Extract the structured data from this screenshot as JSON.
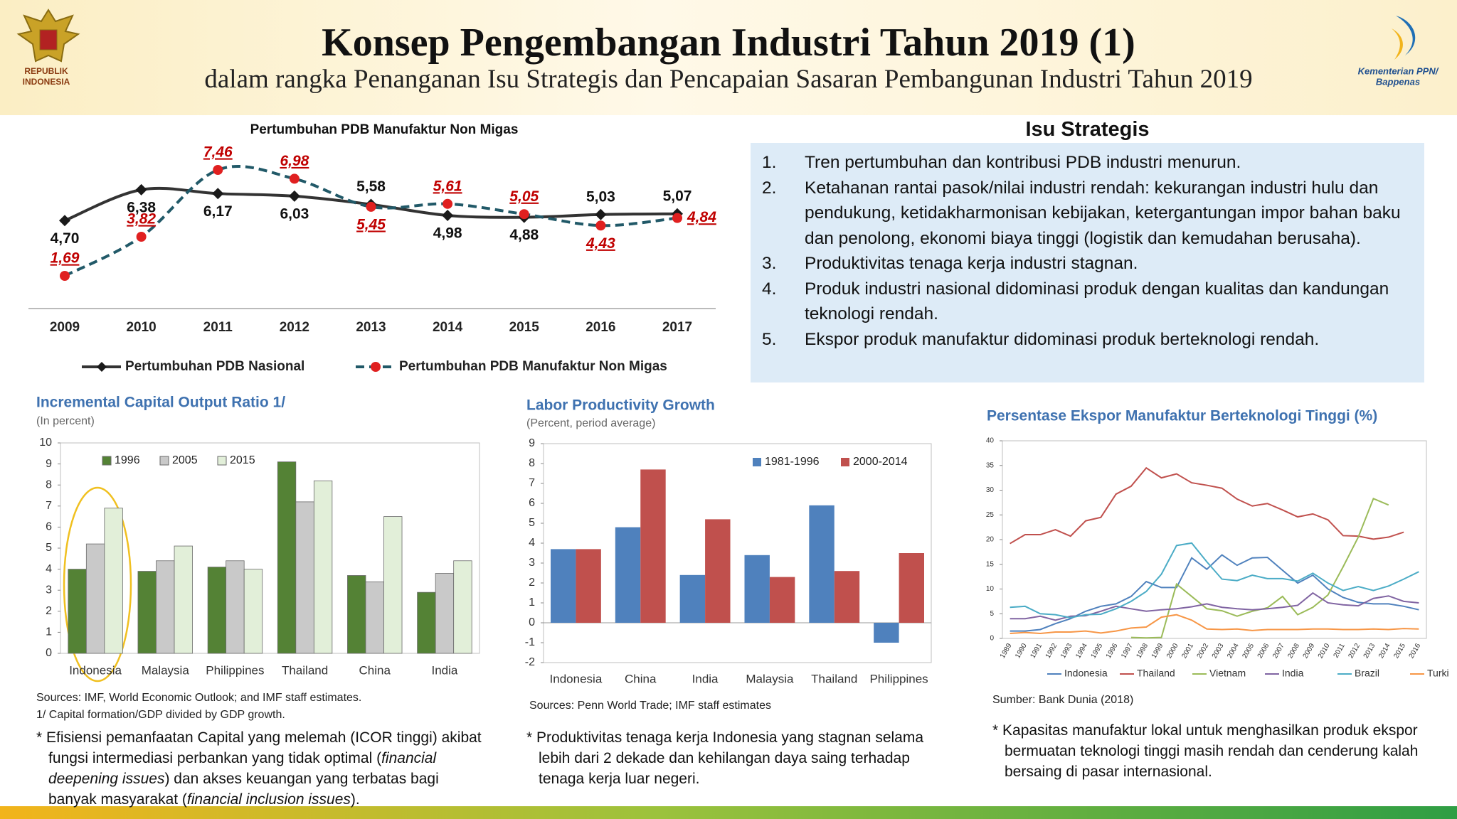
{
  "header": {
    "title": "Konsep Pengembangan Industri Tahun 2019 (1)",
    "subtitle": "dalam rangka Penanganan Isu Strategis dan Pencapaian Sasaran Pembangunan Industri Tahun 2019",
    "left_logo": [
      "REPUBLIK",
      "INDONESIA"
    ],
    "right_logo": [
      "Kementerian PPN/",
      "Bappenas"
    ]
  },
  "isu": {
    "heading": "Isu Strategis",
    "items": [
      {
        "number": "1.",
        "text": "Tren pertumbuhan dan kontribusi PDB industri menurun."
      },
      {
        "number": "2.",
        "text": "Ketahanan rantai pasok/nilai industri rendah: kekurangan industri hulu dan pendukung, ketidakharmonisan kebijakan, ketergantungan impor bahan baku dan penolong, ekonomi biaya tinggi (logistik dan kemudahan berusaha)."
      },
      {
        "number": "3.",
        "text": "Produktivitas tenaga kerja industri stagnan."
      },
      {
        "number": "4.",
        "text": "Produk industri nasional didominasi produk dengan kualitas dan kandungan teknologi rendah."
      },
      {
        "number": "5.",
        "text": "Ekspor produk manufaktur didominasi produk berteknologi rendah."
      }
    ]
  },
  "notes": [
    [
      "* Efisiensi pemanfaatan Capital yang melemah (ICOR tinggi) akibat fungsi intermediasi perbankan yang tidak optimal (",
      "financial deepening issues",
      ") dan akses keuangan yang terbatas bagi banyak masyarakat (",
      "financial inclusion issues",
      ")."
    ],
    "* Produktivitas tenaga kerja Indonesia yang stagnan selama lebih dari 2 dekade dan kehilangan daya saing terhadap tenaga kerja luar negeri.",
    "* Kapasitas manufaktur lokal untuk menghasilkan produk ekspor bermuatan teknologi tinggi masih rendah dan cenderung kalah bersaing di pasar internasional."
  ],
  "chart_data": [
    {
      "type": "line",
      "title": "Pertumbuhan PDB Manufaktur Non Migas",
      "smooth": true,
      "categories": [
        "2009",
        "2010",
        "2011",
        "2012",
        "2013",
        "2014",
        "2015",
        "2016",
        "2017"
      ],
      "series": [
        {
          "name": "Pertumbuhan PDB Nasional",
          "color": "#333333",
          "marker": "diamond",
          "marker_color": "#1a1a1a",
          "values": [
            4.7,
            6.38,
            6.17,
            6.03,
            5.58,
            4.98,
            4.88,
            5.03,
            5.07
          ],
          "value_labels": [
            "4,70",
            "6,38",
            "6,17",
            "6,03",
            "5,58",
            "4,98",
            "4,88",
            "5,03",
            "5,07"
          ]
        },
        {
          "name": "Pertumbuhan PDB Manufaktur Non Migas",
          "color": "#215968",
          "dashed": true,
          "marker": "circle",
          "marker_color": "#e02020",
          "label_color": "#c00000",
          "values": [
            1.69,
            3.82,
            7.46,
            6.98,
            5.45,
            5.61,
            5.05,
            4.43,
            4.84
          ],
          "value_labels": [
            "1,69",
            "3,82",
            "7,46",
            "6,98",
            "5,45",
            "5,61",
            "5,05",
            "4,43",
            "4,84"
          ]
        }
      ]
    },
    {
      "type": "bar",
      "title": "Incremental Capital Output Ratio 1/",
      "subtitle": "(In percent)",
      "categories": [
        "Indonesia",
        "Malaysia",
        "Philippines",
        "Thailand",
        "China",
        "India"
      ],
      "series": [
        {
          "name": "1996",
          "color": "#548235",
          "values": [
            4.0,
            3.9,
            4.1,
            9.1,
            3.7,
            2.9
          ]
        },
        {
          "name": "2005",
          "color": "#c9c9c9",
          "values": [
            5.2,
            4.4,
            4.4,
            7.2,
            3.4,
            3.8
          ]
        },
        {
          "name": "2015",
          "color": "#e2efd9",
          "values": [
            6.9,
            5.1,
            4.0,
            8.2,
            6.5,
            4.4
          ]
        }
      ],
      "ylim": [
        0,
        10
      ],
      "yticks": [
        0,
        1,
        2,
        3,
        4,
        5,
        6,
        7,
        8,
        9,
        10
      ],
      "legend": "top-left",
      "sources": [
        "Sources: IMF, World Economic Outlook; and IMF staff estimates.",
        "1/ Capital formation/GDP divided by GDP growth."
      ]
    },
    {
      "type": "bar",
      "title": "Labor Productivity Growth",
      "subtitle": "(Percent, period average)",
      "categories": [
        "Indonesia",
        "China",
        "India",
        "Malaysia",
        "Thailand",
        "Philippines"
      ],
      "series": [
        {
          "name": "1981-1996",
          "color": "#4f81bd",
          "values": [
            3.7,
            4.8,
            2.4,
            3.4,
            5.9,
            -1.0
          ]
        },
        {
          "name": "2000-2014",
          "color": "#c0504d",
          "values": [
            3.7,
            7.7,
            5.2,
            2.3,
            2.6,
            3.5
          ]
        }
      ],
      "ylim": [
        -2,
        9
      ],
      "yticks": [
        -2,
        -1,
        0,
        1,
        2,
        3,
        4,
        5,
        6,
        7,
        8,
        9
      ],
      "legend": "top-right",
      "sources": [
        "Sources: Penn World Trade; IMF staff estimates"
      ]
    },
    {
      "type": "line",
      "title": "Persentase Ekspor Manufaktur Berteknologi Tinggi (%)",
      "categories": [
        "1989",
        "1990",
        "1991",
        "1992",
        "1993",
        "1994",
        "1995",
        "1996",
        "1997",
        "1998",
        "1999",
        "2000",
        "2001",
        "2002",
        "2003",
        "2004",
        "2005",
        "2006",
        "2007",
        "2008",
        "2009",
        "2010",
        "2011",
        "2012",
        "2013",
        "2014",
        "2015",
        "2016"
      ],
      "series": [
        {
          "name": "Indonesia",
          "color": "#4f81bd",
          "values": [
            1.5,
            1.5,
            1.8,
            3.0,
            4.0,
            5.5,
            6.5,
            7.0,
            8.5,
            11.5,
            10.3,
            10.3,
            16.3,
            14.0,
            16.9,
            14.8,
            16.3,
            16.4,
            13.8,
            11.2,
            12.8,
            10.0,
            8.3,
            7.3,
            7.0,
            7.0,
            6.5,
            5.8
          ]
        },
        {
          "name": "Thailand",
          "color": "#c0504d",
          "values": [
            19.2,
            21.0,
            21.0,
            22.0,
            20.7,
            23.8,
            24.5,
            29.2,
            30.8,
            34.5,
            32.5,
            33.3,
            31.5,
            31.0,
            30.4,
            28.2,
            26.8,
            27.3,
            26.0,
            24.6,
            25.2,
            24.0,
            20.8,
            20.7,
            20.1,
            20.5,
            21.5,
            null
          ]
        },
        {
          "name": "Vietnam",
          "color": "#9bbb59",
          "values": [
            null,
            null,
            null,
            null,
            null,
            null,
            null,
            null,
            0.2,
            0.1,
            0.2,
            11.0,
            8.5,
            6.0,
            5.6,
            4.5,
            5.5,
            6.2,
            8.5,
            4.8,
            6.3,
            8.8,
            14.5,
            20.5,
            28.3,
            27.0,
            null,
            null
          ]
        },
        {
          "name": "India",
          "color": "#8064a2",
          "values": [
            4.0,
            4.0,
            4.5,
            3.7,
            4.5,
            4.6,
            5.5,
            6.5,
            6.0,
            5.5,
            5.8,
            6.0,
            6.4,
            7.0,
            6.3,
            6.0,
            5.8,
            6.0,
            6.3,
            6.7,
            9.2,
            7.2,
            6.8,
            6.6,
            8.1,
            8.6,
            7.5,
            7.2
          ]
        },
        {
          "name": "Brazil",
          "color": "#4bacc6",
          "values": [
            6.3,
            6.5,
            5.0,
            4.8,
            4.2,
            4.8,
            4.9,
            6.0,
            7.5,
            9.5,
            13.0,
            18.8,
            19.3,
            15.5,
            12.0,
            11.7,
            12.8,
            12.1,
            12.1,
            11.6,
            13.2,
            11.2,
            9.7,
            10.5,
            9.7,
            10.6,
            12.0,
            13.5
          ]
        },
        {
          "name": "Turki",
          "color": "#f79646",
          "values": [
            1.0,
            1.2,
            1.0,
            1.3,
            1.3,
            1.5,
            1.1,
            1.5,
            2.1,
            2.3,
            4.3,
            4.8,
            3.7,
            1.9,
            1.8,
            1.9,
            1.6,
            1.8,
            1.8,
            1.8,
            1.9,
            1.9,
            1.8,
            1.8,
            1.9,
            1.8,
            2.0,
            1.9
          ]
        }
      ],
      "ylim": [
        0,
        40
      ],
      "yticks": [
        0,
        5,
        10,
        15,
        20,
        25,
        30,
        35,
        40
      ],
      "legend": "bottom",
      "sources": [
        "Sumber: Bank Dunia (2018)"
      ]
    }
  ]
}
